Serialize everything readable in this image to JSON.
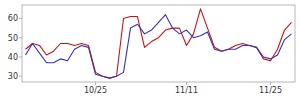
{
  "chart_data": {
    "type": "line",
    "categories": [
      null,
      null,
      null,
      null,
      null,
      null,
      null,
      null,
      null,
      null,
      "10/25",
      null,
      null,
      null,
      null,
      null,
      null,
      null,
      null,
      null,
      null,
      null,
      null,
      "11/11",
      null,
      null,
      null,
      null,
      null,
      null,
      null,
      null,
      null,
      null,
      null,
      "11/25",
      null,
      null,
      null
    ],
    "series": [
      {
        "color": "#cc1111",
        "values": [
          44,
          47,
          46,
          41,
          43,
          47,
          47,
          46,
          47,
          46,
          32,
          30,
          29,
          30,
          60,
          61,
          61,
          45,
          48,
          50,
          54,
          55,
          55,
          46,
          52,
          65,
          55,
          45,
          43,
          44,
          46,
          47,
          46,
          45,
          39,
          38,
          44,
          54,
          58
        ]
      },
      {
        "color": "#3333bb",
        "values": [
          41,
          47,
          42,
          37,
          37,
          39,
          38,
          44,
          46,
          45,
          31,
          30,
          29,
          30,
          32,
          55,
          57,
          52,
          54,
          58,
          62,
          55,
          52,
          54,
          50,
          51,
          53,
          44,
          43,
          44,
          44,
          46,
          46,
          45,
          40,
          39,
          41,
          49,
          52
        ]
      }
    ],
    "ylim": [
      27,
      67
    ],
    "yticks": [
      30,
      40,
      50,
      60
    ],
    "grid": false
  }
}
